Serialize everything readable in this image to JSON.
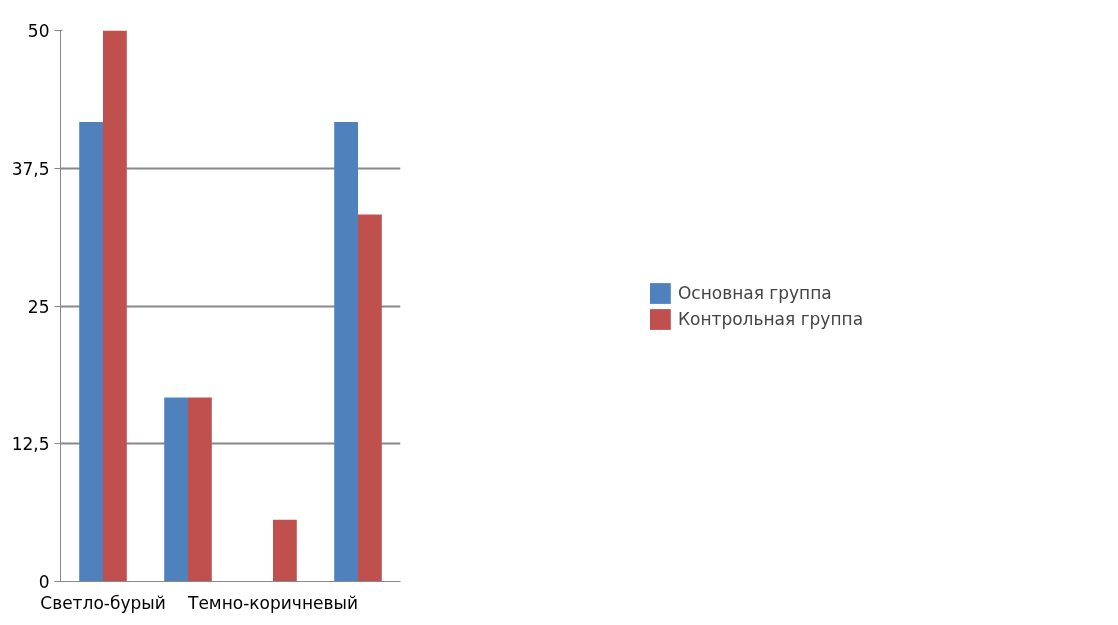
{
  "chart_data": {
    "type": "bar",
    "categories": [
      "Светло-бурый",
      null,
      "Темно-коричневый",
      null
    ],
    "series": [
      {
        "name": "Основная группа",
        "color": "#4f81bd",
        "values": [
          41.7,
          16.7,
          0,
          41.7
        ]
      },
      {
        "name": "Контрольная группа",
        "color": "#c0504d",
        "values": [
          50,
          16.7,
          5.6,
          33.3
        ]
      }
    ],
    "ylim": [
      0,
      50
    ],
    "yticks": [
      0,
      {
        "value": 12.5,
        "label": "12,5"
      },
      25,
      {
        "value": 37.5,
        "label": "37,5"
      },
      50
    ],
    "grid": "y",
    "legend": "right"
  }
}
